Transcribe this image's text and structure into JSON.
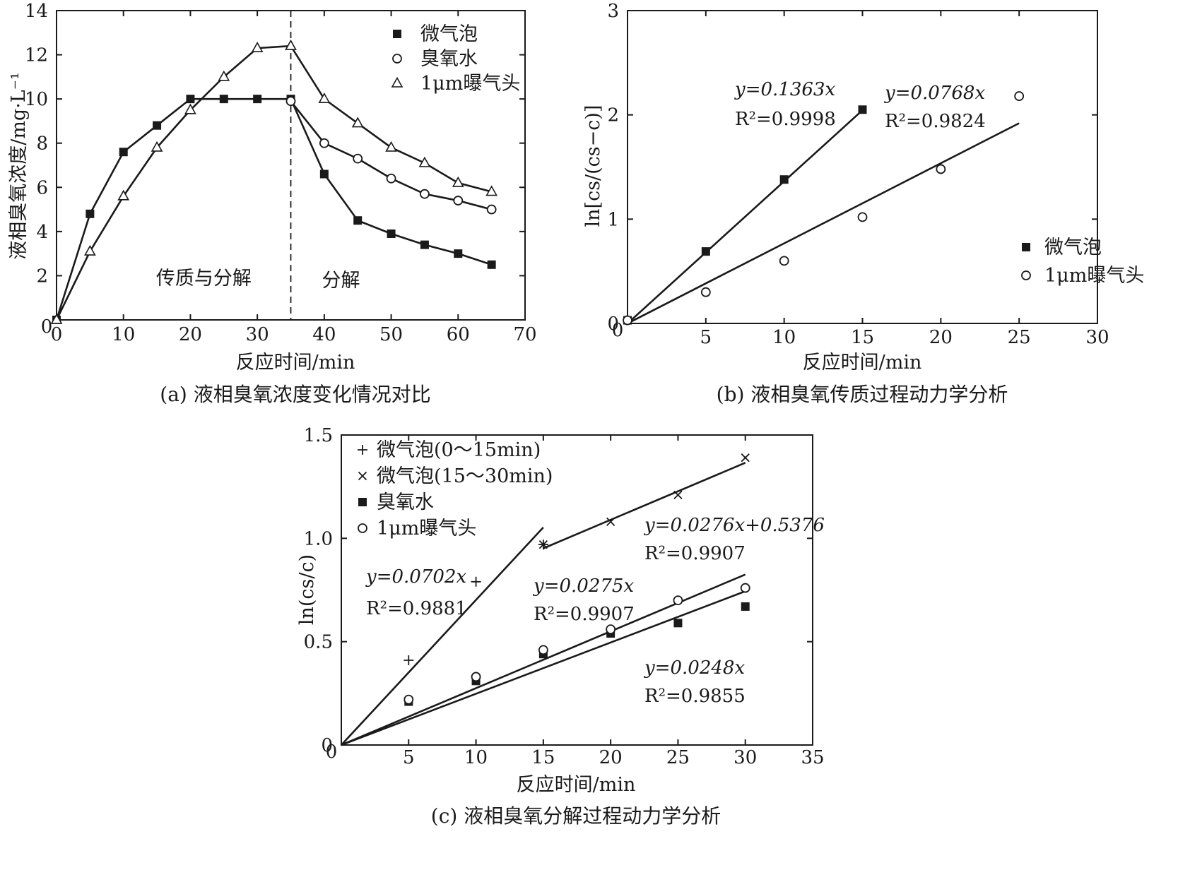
{
  "chart_data": [
    {
      "type": "line",
      "caption": "(a) 液相臭氧浓度变化情况对比",
      "xlabel": "反应时间/min",
      "ylabel": "液相臭氧浓度/mg·L⁻¹",
      "xlim": [
        0,
        70
      ],
      "ylim": [
        0,
        14
      ],
      "xticks": [
        "0",
        "10",
        "20",
        "30",
        "40",
        "50",
        "60",
        "70"
      ],
      "yticks": [
        "2",
        "4",
        "6",
        "8",
        "10",
        "12",
        "14"
      ],
      "legend_position": "top-right",
      "annotations": [
        {
          "text": "传质与分解",
          "x": 22,
          "y": 1.6
        },
        {
          "text": "分解",
          "x": 42.5,
          "y": 1.5
        }
      ],
      "divider_x": 35,
      "series": [
        {
          "name": "微气泡",
          "marker": "square-filled",
          "x": [
            0,
            5,
            10,
            15,
            20,
            25,
            30,
            35,
            40,
            45,
            50,
            55,
            60,
            65
          ],
          "y": [
            0,
            4.8,
            7.6,
            8.8,
            10.0,
            10.0,
            10.0,
            10.0,
            6.6,
            4.5,
            3.9,
            3.4,
            3.0,
            2.5
          ]
        },
        {
          "name": "臭氧水",
          "marker": "circle-open",
          "x": [
            35,
            40,
            45,
            50,
            55,
            60,
            65
          ],
          "y": [
            9.9,
            8.0,
            7.3,
            6.4,
            5.7,
            5.4,
            5.0
          ]
        },
        {
          "name": "1μm曝气头",
          "marker": "triangle-open",
          "x": [
            0,
            5,
            10,
            15,
            20,
            25,
            30,
            35,
            40,
            45,
            50,
            55,
            60,
            65
          ],
          "y": [
            0,
            3.1,
            5.6,
            7.8,
            9.5,
            11.0,
            12.3,
            12.4,
            10.0,
            8.9,
            7.8,
            7.1,
            6.2,
            5.8
          ]
        }
      ]
    },
    {
      "type": "scatter",
      "caption": "(b) 液相臭氧传质过程动力学分析",
      "xlabel": "反应时间/min",
      "ylabel": "ln[cs/(cs−c)]",
      "xlim": [
        0,
        30
      ],
      "ylim": [
        0,
        3
      ],
      "xticks": [
        "5",
        "10",
        "15",
        "20",
        "25",
        "30"
      ],
      "yticks": [
        "0",
        "1",
        "2",
        "3"
      ],
      "legend_position": "bottom-right",
      "series": [
        {
          "name": "微气泡",
          "marker": "square-filled",
          "x": [
            0,
            5,
            10,
            15
          ],
          "y": [
            0.03,
            0.69,
            1.38,
            2.05
          ],
          "fit": {
            "slope": 0.1363,
            "intercept": 0,
            "x_range": [
              0,
              15
            ],
            "equation": "y=0.1363x",
            "r2": "R²=0.9998"
          }
        },
        {
          "name": "1μm曝气头",
          "marker": "circle-open",
          "x": [
            0,
            5,
            10,
            15,
            20,
            25
          ],
          "y": [
            0.03,
            0.3,
            0.6,
            1.02,
            1.48,
            2.18
          ],
          "fit": {
            "slope": 0.0768,
            "intercept": 0,
            "x_range": [
              0,
              25
            ],
            "equation": "y=0.0768x",
            "r2": "R²=0.9824"
          }
        }
      ]
    },
    {
      "type": "scatter",
      "caption": "(c) 液相臭氧分解过程动力学分析",
      "xlabel": "反应时间/min",
      "ylabel": "ln(cs/c)",
      "xlim": [
        0,
        35
      ],
      "ylim": [
        0,
        1.5
      ],
      "xticks": [
        "5",
        "10",
        "15",
        "20",
        "25",
        "30",
        "35"
      ],
      "yticks": [
        "0",
        "0.5",
        "1.0",
        "1.5"
      ],
      "legend_position": "top-left",
      "series": [
        {
          "name": "微气泡(0～15min)",
          "marker": "plus",
          "x": [
            5,
            10,
            15
          ],
          "y": [
            0.41,
            0.79,
            0.97
          ],
          "fit": {
            "slope": 0.0702,
            "intercept": 0,
            "x_range": [
              0,
              15
            ],
            "equation": "y=0.0702x",
            "r2": "R²=0.9881"
          }
        },
        {
          "name": "微气泡(15～30min)",
          "marker": "cross",
          "x": [
            15,
            20,
            25,
            30
          ],
          "y": [
            0.97,
            1.08,
            1.21,
            1.39
          ],
          "fit": {
            "slope": 0.0276,
            "intercept": 0.5376,
            "x_range": [
              15,
              30
            ],
            "equation": "y=0.0276x+0.5376",
            "r2": "R²=0.9907"
          }
        },
        {
          "name": "臭氧水",
          "marker": "square-filled",
          "x": [
            5,
            10,
            15,
            20,
            25,
            30
          ],
          "y": [
            0.21,
            0.31,
            0.44,
            0.54,
            0.59,
            0.67
          ],
          "fit": {
            "slope": 0.0248,
            "intercept": 0,
            "x_range": [
              0,
              30
            ],
            "equation": "y=0.0248x",
            "r2": "R²=0.9855"
          }
        },
        {
          "name": "1μm曝气头",
          "marker": "circle-open",
          "x": [
            5,
            10,
            15,
            20,
            25,
            30
          ],
          "y": [
            0.22,
            0.33,
            0.46,
            0.56,
            0.7,
            0.76
          ],
          "fit": {
            "slope": 0.0275,
            "intercept": 0,
            "x_range": [
              0,
              30
            ],
            "equation": "y=0.0275x",
            "r2": "R²=0.9907"
          }
        }
      ]
    }
  ]
}
